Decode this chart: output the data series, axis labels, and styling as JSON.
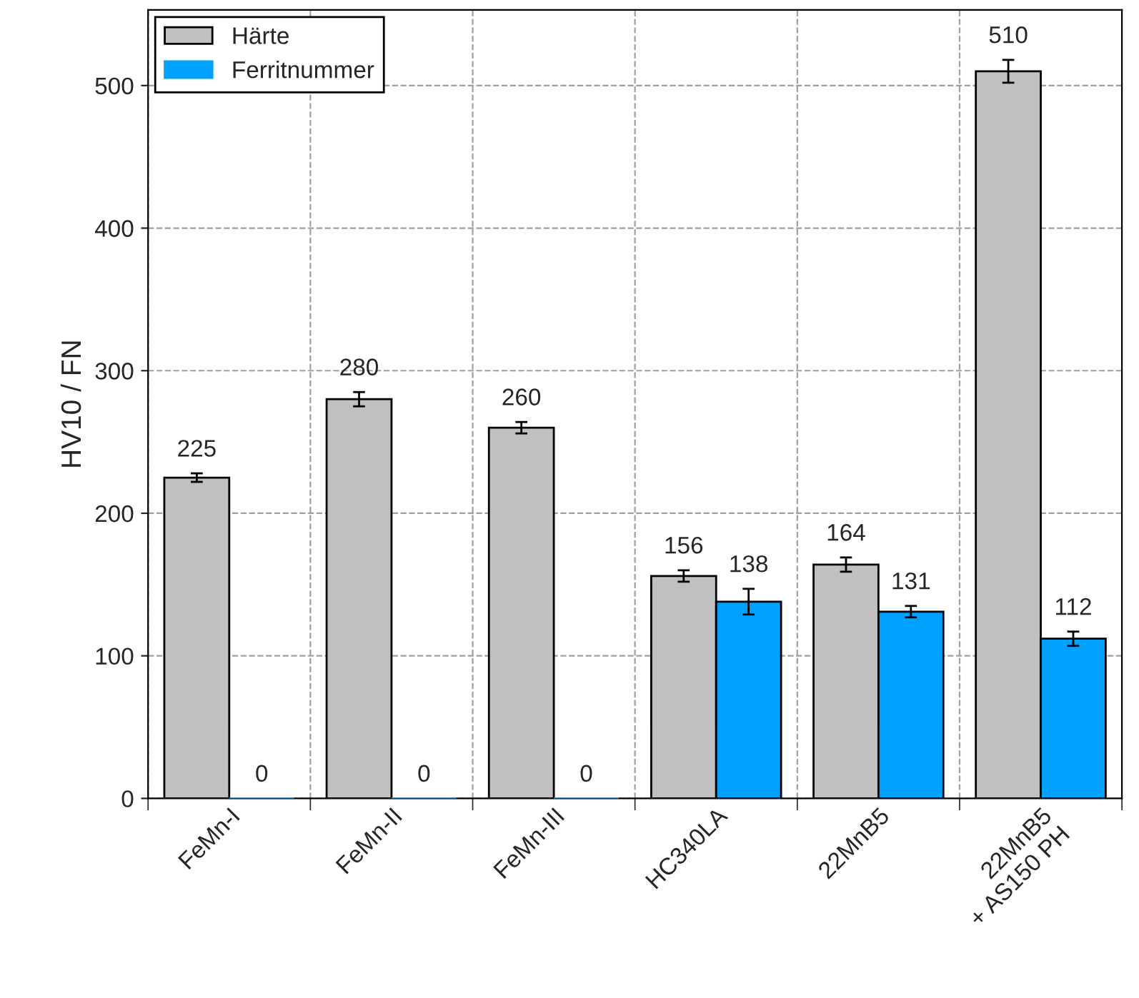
{
  "chart_data": {
    "type": "bar",
    "categories": [
      "FeMn-I",
      "FeMn-II",
      "FeMn-III",
      "HC340LA",
      "22MnB5",
      "22MnB5\n+ AS150 PH"
    ],
    "series": [
      {
        "name": "Härte",
        "color": "#c0c0c0",
        "values": [
          225,
          280,
          260,
          156,
          164,
          510
        ],
        "errors": [
          3,
          5,
          4,
          4,
          5,
          8
        ]
      },
      {
        "name": "Ferritnummer",
        "color": "#00a0ff",
        "values": [
          0,
          0,
          0,
          138,
          131,
          112
        ],
        "errors": [
          null,
          null,
          null,
          9,
          4,
          5
        ]
      }
    ],
    "ylabel": "HV10 / FN",
    "ylim": [
      0,
      553
    ],
    "yticks": [
      0,
      100,
      200,
      300,
      400,
      500
    ],
    "grid": true,
    "legend": "top left",
    "data_labels": true
  }
}
